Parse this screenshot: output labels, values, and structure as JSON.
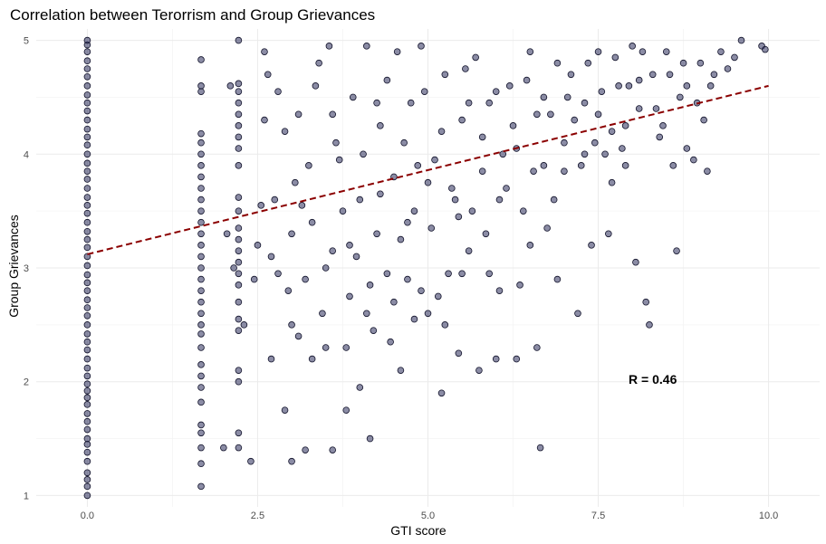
{
  "chart_data": {
    "type": "scatter",
    "title": "Correlation between Terorrism and Group Grievances",
    "xlabel": "GTI score",
    "ylabel": "Group Grievances",
    "xlim": [
      -0.75,
      10.75
    ],
    "ylim": [
      0.9,
      5.1
    ],
    "x_ticks": [
      0,
      2.5,
      5,
      7.5,
      10
    ],
    "x_tick_labels": [
      "0.0",
      "2.5",
      "5.0",
      "7.5",
      "10.0"
    ],
    "y_ticks": [
      1,
      2,
      3,
      4,
      5
    ],
    "y_tick_labels": [
      "1",
      "2",
      "3",
      "4",
      "5"
    ],
    "grid": true,
    "annotation": {
      "text": "R = 0.46",
      "x": 8.3,
      "y": 2.02
    },
    "trend_line": {
      "style": "dashed",
      "color": "#8b0000",
      "intercept": 3.12,
      "slope": 0.148
    },
    "points": [
      [
        0,
        1.0
      ],
      [
        0,
        1.08
      ],
      [
        0,
        1.14
      ],
      [
        0,
        1.2
      ],
      [
        0,
        1.3
      ],
      [
        0,
        1.38
      ],
      [
        0,
        1.45
      ],
      [
        0,
        1.5
      ],
      [
        0,
        1.58
      ],
      [
        0,
        1.65
      ],
      [
        0,
        1.72
      ],
      [
        0,
        1.8
      ],
      [
        0,
        1.86
      ],
      [
        0,
        1.92
      ],
      [
        0,
        1.98
      ],
      [
        0,
        2.05
      ],
      [
        0,
        2.12
      ],
      [
        0,
        2.2
      ],
      [
        0,
        2.28
      ],
      [
        0,
        2.35
      ],
      [
        0,
        2.42
      ],
      [
        0,
        2.5
      ],
      [
        0,
        2.58
      ],
      [
        0,
        2.65
      ],
      [
        0,
        2.72
      ],
      [
        0,
        2.8
      ],
      [
        0,
        2.87
      ],
      [
        0,
        2.94
      ],
      [
        0,
        3.02
      ],
      [
        0,
        3.1
      ],
      [
        0,
        3.18
      ],
      [
        0,
        3.25
      ],
      [
        0,
        3.32
      ],
      [
        0,
        3.4
      ],
      [
        0,
        3.48
      ],
      [
        0,
        3.55
      ],
      [
        0,
        3.62
      ],
      [
        0,
        3.7
      ],
      [
        0,
        3.78
      ],
      [
        0,
        3.85
      ],
      [
        0,
        3.92
      ],
      [
        0,
        4.0
      ],
      [
        0,
        4.08
      ],
      [
        0,
        4.15
      ],
      [
        0,
        4.22
      ],
      [
        0,
        4.3
      ],
      [
        0,
        4.38
      ],
      [
        0,
        4.45
      ],
      [
        0,
        4.52
      ],
      [
        0,
        4.6
      ],
      [
        0,
        4.68
      ],
      [
        0,
        4.75
      ],
      [
        0,
        4.82
      ],
      [
        0,
        4.9
      ],
      [
        0,
        4.96
      ],
      [
        0,
        5.0
      ],
      [
        1.67,
        1.08
      ],
      [
        1.67,
        1.28
      ],
      [
        1.67,
        1.42
      ],
      [
        1.67,
        1.55
      ],
      [
        1.67,
        1.62
      ],
      [
        1.67,
        1.82
      ],
      [
        1.67,
        1.95
      ],
      [
        1.67,
        2.05
      ],
      [
        1.67,
        2.15
      ],
      [
        1.67,
        2.3
      ],
      [
        1.67,
        2.42
      ],
      [
        1.67,
        2.5
      ],
      [
        1.67,
        2.6
      ],
      [
        1.67,
        2.7
      ],
      [
        1.67,
        2.8
      ],
      [
        1.67,
        2.9
      ],
      [
        1.67,
        3.0
      ],
      [
        1.67,
        3.1
      ],
      [
        1.67,
        3.2
      ],
      [
        1.67,
        3.3
      ],
      [
        1.67,
        3.4
      ],
      [
        1.67,
        3.5
      ],
      [
        1.67,
        3.6
      ],
      [
        1.67,
        3.7
      ],
      [
        1.67,
        3.8
      ],
      [
        1.67,
        3.9
      ],
      [
        1.67,
        4.0
      ],
      [
        1.67,
        4.1
      ],
      [
        1.67,
        4.18
      ],
      [
        1.67,
        4.55
      ],
      [
        1.67,
        4.6
      ],
      [
        1.67,
        4.83
      ],
      [
        2.22,
        1.42
      ],
      [
        2.22,
        1.55
      ],
      [
        2.22,
        2.0
      ],
      [
        2.22,
        2.1
      ],
      [
        2.22,
        2.45
      ],
      [
        2.22,
        2.55
      ],
      [
        2.22,
        2.7
      ],
      [
        2.22,
        2.85
      ],
      [
        2.22,
        2.95
      ],
      [
        2.22,
        3.05
      ],
      [
        2.22,
        3.15
      ],
      [
        2.22,
        3.25
      ],
      [
        2.22,
        3.35
      ],
      [
        2.22,
        3.5
      ],
      [
        2.22,
        3.62
      ],
      [
        2.22,
        3.9
      ],
      [
        2.22,
        4.05
      ],
      [
        2.22,
        4.15
      ],
      [
        2.22,
        4.25
      ],
      [
        2.22,
        4.35
      ],
      [
        2.22,
        4.45
      ],
      [
        2.22,
        4.55
      ],
      [
        2.22,
        4.62
      ],
      [
        2.22,
        5.0
      ],
      [
        2.0,
        1.42
      ],
      [
        2.05,
        3.3
      ],
      [
        2.1,
        4.6
      ],
      [
        2.15,
        3.0
      ],
      [
        2.3,
        2.5
      ],
      [
        2.4,
        1.3
      ],
      [
        2.45,
        2.9
      ],
      [
        2.5,
        3.2
      ],
      [
        2.55,
        3.55
      ],
      [
        2.6,
        4.9
      ],
      [
        2.65,
        4.7
      ],
      [
        2.7,
        2.2
      ],
      [
        2.75,
        3.6
      ],
      [
        2.8,
        2.95
      ],
      [
        2.9,
        1.75
      ],
      [
        2.9,
        4.2
      ],
      [
        3.0,
        1.3
      ],
      [
        3.0,
        2.5
      ],
      [
        3.05,
        3.75
      ],
      [
        3.1,
        4.35
      ],
      [
        3.2,
        1.4
      ],
      [
        3.2,
        2.9
      ],
      [
        3.3,
        3.4
      ],
      [
        3.4,
        4.8
      ],
      [
        3.5,
        2.3
      ],
      [
        3.55,
        4.95
      ],
      [
        3.6,
        1.4
      ],
      [
        3.6,
        3.15
      ],
      [
        3.7,
        3.95
      ],
      [
        3.8,
        1.75
      ],
      [
        3.85,
        2.75
      ],
      [
        3.9,
        4.5
      ],
      [
        4.0,
        1.95
      ],
      [
        4.0,
        3.6
      ],
      [
        4.1,
        4.95
      ],
      [
        4.15,
        1.5
      ],
      [
        4.2,
        2.45
      ],
      [
        4.25,
        3.3
      ],
      [
        4.3,
        4.25
      ],
      [
        4.4,
        2.95
      ],
      [
        4.5,
        3.8
      ],
      [
        4.55,
        4.9
      ],
      [
        4.6,
        2.1
      ],
      [
        4.7,
        2.9
      ],
      [
        4.75,
        4.45
      ],
      [
        4.8,
        3.5
      ],
      [
        4.9,
        4.95
      ],
      [
        5.0,
        2.6
      ],
      [
        5.1,
        3.95
      ],
      [
        5.2,
        1.9
      ],
      [
        5.25,
        4.7
      ],
      [
        5.3,
        2.95
      ],
      [
        5.4,
        3.6
      ],
      [
        5.45,
        2.25
      ],
      [
        5.5,
        4.3
      ],
      [
        5.6,
        3.15
      ],
      [
        5.7,
        4.85
      ],
      [
        5.75,
        2.1
      ],
      [
        5.8,
        3.85
      ],
      [
        5.9,
        4.45
      ],
      [
        6.0,
        2.2
      ],
      [
        6.05,
        2.8
      ],
      [
        6.1,
        4.0
      ],
      [
        6.2,
        4.6
      ],
      [
        6.3,
        2.2
      ],
      [
        6.4,
        3.5
      ],
      [
        6.5,
        4.9
      ],
      [
        6.6,
        2.3
      ],
      [
        6.65,
        1.42
      ],
      [
        6.7,
        3.9
      ],
      [
        6.8,
        4.35
      ],
      [
        6.9,
        2.9
      ],
      [
        7.0,
        4.1
      ],
      [
        7.1,
        4.7
      ],
      [
        7.2,
        2.6
      ],
      [
        7.3,
        4.45
      ],
      [
        7.4,
        3.2
      ],
      [
        7.5,
        4.9
      ],
      [
        7.6,
        4.0
      ],
      [
        7.7,
        3.75
      ],
      [
        7.8,
        4.6
      ],
      [
        7.9,
        4.25
      ],
      [
        8.0,
        4.95
      ],
      [
        8.05,
        3.05
      ],
      [
        8.1,
        4.4
      ],
      [
        8.2,
        2.7
      ],
      [
        8.25,
        2.5
      ],
      [
        8.3,
        4.7
      ],
      [
        8.4,
        4.15
      ],
      [
        8.5,
        4.9
      ],
      [
        8.6,
        3.9
      ],
      [
        8.65,
        3.15
      ],
      [
        8.7,
        4.5
      ],
      [
        8.8,
        4.6
      ],
      [
        8.9,
        3.95
      ],
      [
        9.0,
        4.8
      ],
      [
        9.1,
        3.85
      ],
      [
        9.2,
        4.7
      ],
      [
        9.3,
        4.9
      ],
      [
        9.5,
        4.85
      ],
      [
        9.6,
        5.0
      ],
      [
        9.9,
        4.95
      ],
      [
        9.95,
        4.92
      ],
      [
        2.6,
        4.3
      ],
      [
        2.8,
        4.55
      ],
      [
        3.0,
        3.3
      ],
      [
        3.1,
        2.4
      ],
      [
        3.25,
        3.9
      ],
      [
        3.35,
        4.6
      ],
      [
        3.45,
        2.6
      ],
      [
        3.6,
        4.35
      ],
      [
        3.75,
        3.5
      ],
      [
        3.8,
        2.3
      ],
      [
        3.95,
        3.1
      ],
      [
        4.05,
        4.0
      ],
      [
        4.15,
        2.85
      ],
      [
        4.3,
        3.65
      ],
      [
        4.4,
        4.65
      ],
      [
        4.45,
        2.35
      ],
      [
        4.6,
        3.25
      ],
      [
        4.65,
        4.1
      ],
      [
        4.8,
        2.55
      ],
      [
        4.85,
        3.9
      ],
      [
        4.95,
        4.55
      ],
      [
        5.05,
        3.35
      ],
      [
        5.15,
        2.75
      ],
      [
        5.2,
        4.2
      ],
      [
        5.35,
        3.7
      ],
      [
        5.5,
        2.95
      ],
      [
        5.55,
        4.75
      ],
      [
        5.65,
        3.5
      ],
      [
        5.8,
        4.15
      ],
      [
        5.9,
        2.95
      ],
      [
        6.0,
        4.55
      ],
      [
        6.15,
        3.7
      ],
      [
        6.25,
        4.25
      ],
      [
        6.35,
        2.85
      ],
      [
        6.45,
        4.65
      ],
      [
        6.55,
        3.85
      ],
      [
        6.7,
        4.5
      ],
      [
        6.75,
        3.35
      ],
      [
        6.9,
        4.8
      ],
      [
        7.0,
        3.85
      ],
      [
        7.15,
        4.3
      ],
      [
        7.25,
        3.9
      ],
      [
        7.35,
        4.8
      ],
      [
        7.45,
        4.1
      ],
      [
        7.55,
        4.55
      ],
      [
        7.65,
        3.3
      ],
      [
        7.75,
        4.85
      ],
      [
        7.85,
        4.05
      ],
      [
        7.95,
        4.6
      ],
      [
        8.15,
        4.9
      ],
      [
        8.35,
        4.4
      ],
      [
        8.55,
        4.7
      ],
      [
        8.75,
        4.8
      ],
      [
        8.95,
        4.45
      ],
      [
        9.15,
        4.6
      ],
      [
        9.4,
        4.75
      ],
      [
        2.7,
        3.1
      ],
      [
        2.95,
        2.8
      ],
      [
        3.15,
        3.55
      ],
      [
        3.3,
        2.2
      ],
      [
        3.5,
        3.0
      ],
      [
        3.65,
        4.1
      ],
      [
        3.85,
        3.2
      ],
      [
        4.1,
        2.6
      ],
      [
        4.25,
        4.45
      ],
      [
        4.5,
        2.7
      ],
      [
        4.7,
        3.4
      ],
      [
        4.9,
        2.8
      ],
      [
        5.0,
        3.75
      ],
      [
        5.25,
        2.5
      ],
      [
        5.45,
        3.45
      ],
      [
        5.6,
        4.45
      ],
      [
        5.85,
        3.3
      ],
      [
        6.05,
        3.6
      ],
      [
        6.3,
        4.05
      ],
      [
        6.5,
        3.2
      ],
      [
        6.6,
        4.35
      ],
      [
        6.85,
        3.6
      ],
      [
        7.05,
        4.5
      ],
      [
        7.3,
        4.0
      ],
      [
        7.5,
        4.35
      ],
      [
        7.7,
        4.2
      ],
      [
        7.9,
        3.9
      ],
      [
        8.1,
        4.65
      ],
      [
        8.45,
        4.25
      ],
      [
        8.8,
        4.05
      ],
      [
        9.05,
        4.3
      ]
    ]
  }
}
